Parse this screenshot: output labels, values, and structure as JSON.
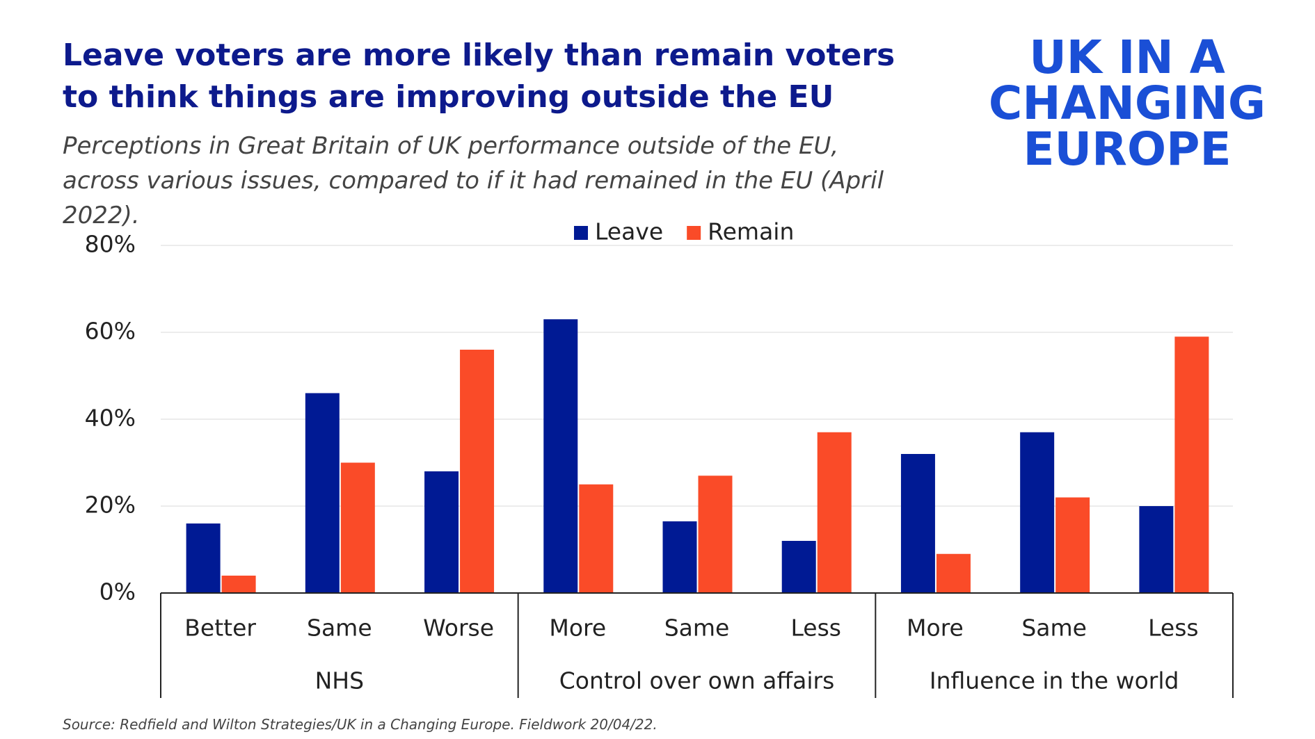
{
  "chart_data": {
    "type": "bar",
    "title": "Leave voters are more likely than remain voters to think things are improving outside the EU",
    "subtitle": "Perceptions in Great Britain of UK performance outside of the EU, across various issues, compared to if it had remained in the EU (April 2022).",
    "source": "Source: Redfield and Wilton Strategies/UK in a Changing Europe. Fieldwork 20/04/22.",
    "logo": [
      "UK IN A",
      "CHANGING",
      "EUROPE"
    ],
    "groups": [
      {
        "label": "NHS",
        "categories": [
          "Better",
          "Same",
          "Worse"
        ]
      },
      {
        "label": "Control over own affairs",
        "categories": [
          "More",
          "Same",
          "Less"
        ]
      },
      {
        "label": "Influence in the world",
        "categories": [
          "More",
          "Same",
          "Less"
        ]
      }
    ],
    "series": [
      {
        "name": "Leave",
        "color": "#001a94",
        "values": [
          16,
          46,
          28,
          63,
          16.5,
          12,
          32,
          37,
          20
        ]
      },
      {
        "name": "Remain",
        "color": "#fa4b28",
        "values": [
          4,
          30,
          56,
          25,
          27,
          37,
          9,
          22,
          59
        ]
      }
    ],
    "ylim": [
      0,
      80
    ],
    "yticks": [
      {
        "value": 0,
        "label": "0%"
      },
      {
        "value": 20,
        "label": "20%"
      },
      {
        "value": 40,
        "label": "40%"
      },
      {
        "value": 60,
        "label": "60%"
      },
      {
        "value": 80,
        "label": "80%"
      }
    ],
    "grid": true
  }
}
